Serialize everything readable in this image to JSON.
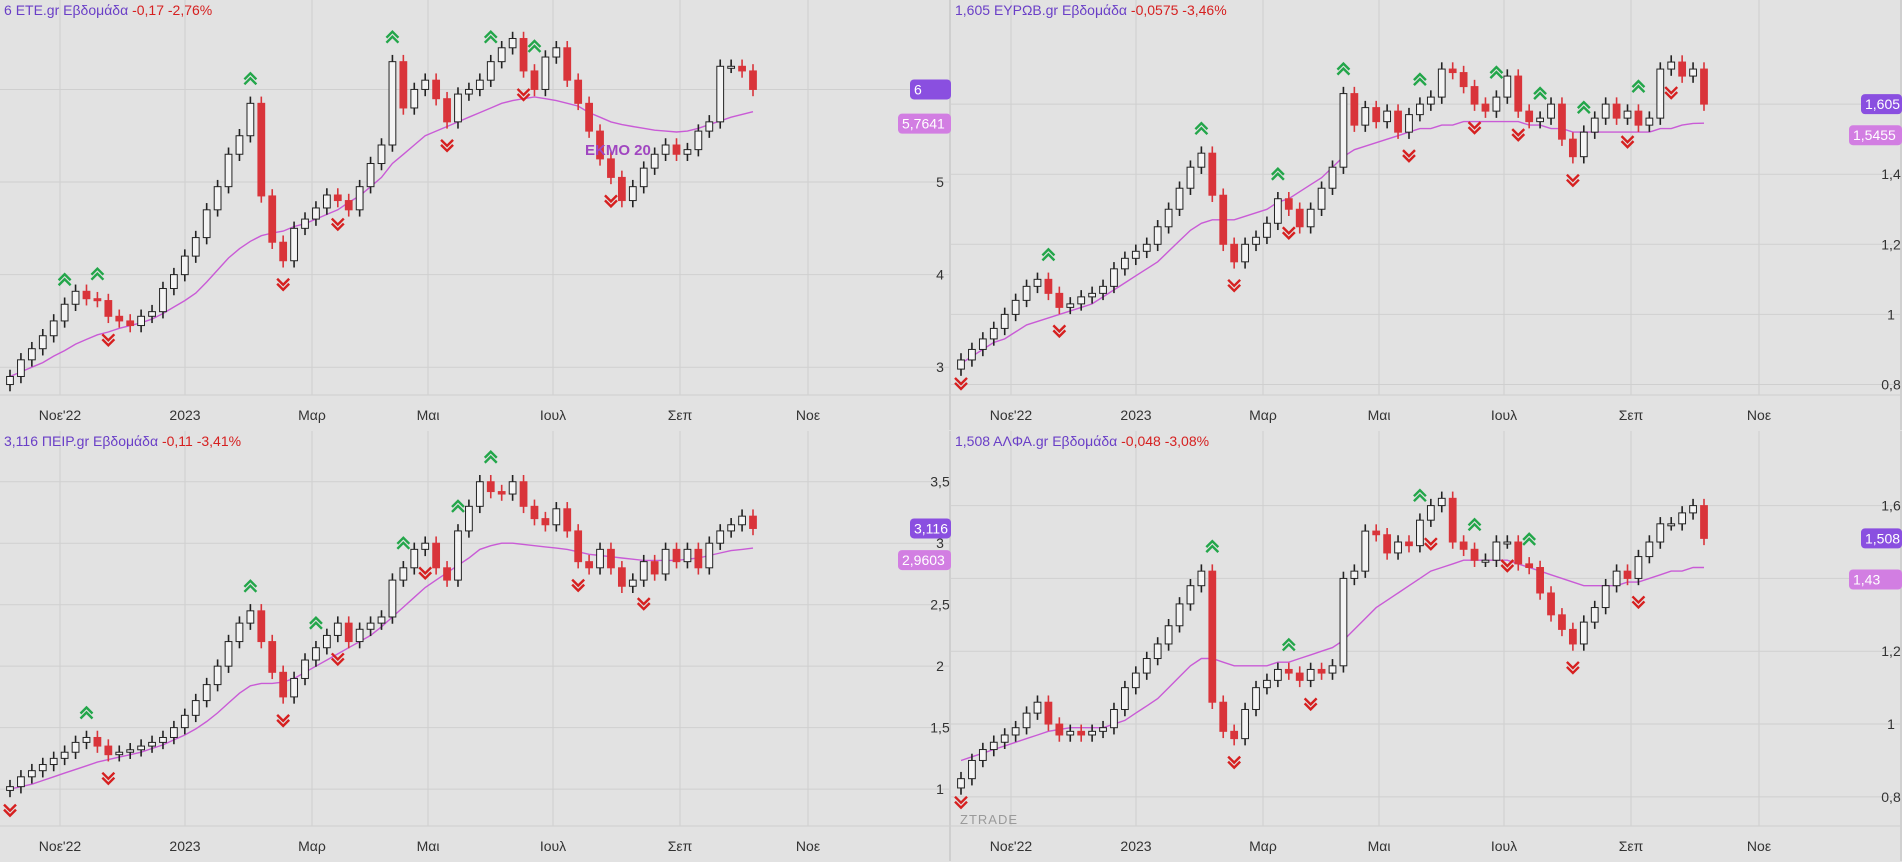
{
  "watermark": "ZTRADE",
  "colors": {
    "bg": "#e2e2e2",
    "grid": "#cfcfcf",
    "up_fill": "#f4f4f4",
    "down": "#d9343a",
    "ma": "#c95bd6",
    "accent": "#8a4fe0",
    "buy": "#23a64a",
    "sell": "#d62020"
  },
  "x_axis_labels": [
    "Νοε'22",
    "2023",
    "Μαρ",
    "Μαι",
    "Ιουλ",
    "Σεπ",
    "Νοε"
  ],
  "chart_data": [
    {
      "type": "candlestick",
      "symbol": "ETE.gr",
      "last_label": "6",
      "timeframe": "Εβδομάδα",
      "change": "-0,17 -2,76%",
      "ma_label": "5,7641",
      "annotation": "ΕΚΜΟ 20",
      "ylim": [
        2.7,
        6.75
      ],
      "yticks": [
        3,
        4,
        5,
        6
      ],
      "ytick_labels": [
        "3",
        "4",
        "5",
        "6"
      ],
      "close": [
        2.9,
        3.08,
        3.2,
        3.34,
        3.5,
        3.68,
        3.82,
        3.74,
        3.72,
        3.55,
        3.5,
        3.45,
        3.55,
        3.6,
        3.85,
        4.0,
        4.2,
        4.4,
        4.7,
        4.95,
        5.3,
        5.5,
        5.85,
        4.85,
        4.35,
        4.15,
        4.5,
        4.6,
        4.72,
        4.86,
        4.8,
        4.7,
        4.95,
        5.2,
        5.4,
        6.3,
        5.8,
        6.0,
        6.1,
        5.9,
        5.65,
        5.95,
        6.0,
        6.1,
        6.3,
        6.45,
        6.55,
        6.2,
        6.0,
        6.35,
        6.45,
        6.1,
        5.85,
        5.55,
        5.25,
        5.05,
        4.8,
        4.95,
        5.15,
        5.3,
        5.4,
        5.3,
        5.35,
        5.55,
        5.65,
        6.25,
        6.25,
        6.2,
        6.0
      ],
      "ma": [
        2.9,
        2.95,
        3.0,
        3.05,
        3.12,
        3.18,
        3.25,
        3.3,
        3.35,
        3.38,
        3.42,
        3.45,
        3.48,
        3.52,
        3.58,
        3.65,
        3.72,
        3.8,
        3.92,
        4.05,
        4.18,
        4.28,
        4.36,
        4.42,
        4.45,
        4.47,
        4.52,
        4.55,
        4.6,
        4.65,
        4.7,
        4.78,
        4.85,
        4.95,
        5.05,
        5.2,
        5.3,
        5.4,
        5.5,
        5.55,
        5.6,
        5.65,
        5.7,
        5.75,
        5.8,
        5.85,
        5.88,
        5.9,
        5.92,
        5.9,
        5.88,
        5.85,
        5.82,
        5.75,
        5.7,
        5.65,
        5.62,
        5.6,
        5.58,
        5.56,
        5.55,
        5.54,
        5.55,
        5.58,
        5.62,
        5.66,
        5.7,
        5.73,
        5.76
      ],
      "buy_signals": [
        5,
        8,
        22,
        35,
        44,
        48
      ],
      "sell_signals": [
        9,
        25,
        30,
        40,
        47,
        55
      ]
    },
    {
      "type": "candlestick",
      "symbol": "ΕΥΡΩΒ.gr",
      "last_label": "1,605",
      "timeframe": "Εβδομάδα",
      "change": "-0,0575 -3,46%",
      "ma_label": "1,5455",
      "ylim": [
        0.77,
        1.84
      ],
      "yticks": [
        0.8,
        1,
        1.2,
        1.4,
        1.6
      ],
      "ytick_labels": [
        "0,8",
        "1",
        "1,2",
        "1,4",
        "1,6"
      ],
      "close": [
        0.87,
        0.9,
        0.93,
        0.96,
        1.0,
        1.04,
        1.08,
        1.1,
        1.06,
        1.02,
        1.03,
        1.05,
        1.06,
        1.08,
        1.13,
        1.16,
        1.18,
        1.2,
        1.25,
        1.3,
        1.36,
        1.42,
        1.46,
        1.34,
        1.2,
        1.15,
        1.2,
        1.22,
        1.26,
        1.33,
        1.3,
        1.25,
        1.3,
        1.36,
        1.42,
        1.63,
        1.54,
        1.59,
        1.55,
        1.58,
        1.52,
        1.57,
        1.6,
        1.62,
        1.7,
        1.69,
        1.65,
        1.6,
        1.58,
        1.62,
        1.68,
        1.58,
        1.55,
        1.56,
        1.6,
        1.5,
        1.45,
        1.52,
        1.56,
        1.6,
        1.56,
        1.58,
        1.54,
        1.56,
        1.7,
        1.72,
        1.68,
        1.7,
        1.6
      ],
      "ma": [
        0.86,
        0.88,
        0.9,
        0.92,
        0.93,
        0.95,
        0.97,
        0.98,
        0.99,
        1.0,
        1.01,
        1.02,
        1.03,
        1.05,
        1.07,
        1.09,
        1.11,
        1.13,
        1.15,
        1.18,
        1.21,
        1.24,
        1.26,
        1.27,
        1.27,
        1.27,
        1.28,
        1.29,
        1.3,
        1.32,
        1.33,
        1.35,
        1.37,
        1.39,
        1.42,
        1.45,
        1.47,
        1.48,
        1.49,
        1.5,
        1.51,
        1.52,
        1.53,
        1.53,
        1.54,
        1.54,
        1.55,
        1.55,
        1.55,
        1.55,
        1.55,
        1.55,
        1.54,
        1.54,
        1.53,
        1.53,
        1.52,
        1.52,
        1.52,
        1.52,
        1.52,
        1.52,
        1.52,
        1.52,
        1.53,
        1.53,
        1.54,
        1.545,
        1.5455
      ],
      "buy_signals": [
        8,
        22,
        29,
        35,
        42,
        49,
        53,
        57,
        62
      ],
      "sell_signals": [
        0,
        9,
        25,
        30,
        41,
        47,
        51,
        56,
        61,
        65
      ]
    },
    {
      "type": "candlestick",
      "symbol": "ΠΕΙΡ.gr",
      "last_label": "3,116",
      "timeframe": "Εβδομάδα",
      "change": "-0,11 -3,41%",
      "ma_label": "2,9603",
      "ylim": [
        0.7,
        3.75
      ],
      "yticks": [
        1,
        1.5,
        2,
        2.5,
        3,
        3.5
      ],
      "ytick_labels": [
        "1",
        "1,5",
        "2",
        "2,5",
        "3",
        "3,5"
      ],
      "close": [
        1.02,
        1.1,
        1.15,
        1.2,
        1.25,
        1.3,
        1.38,
        1.42,
        1.35,
        1.28,
        1.3,
        1.32,
        1.35,
        1.38,
        1.42,
        1.5,
        1.6,
        1.72,
        1.85,
        2.0,
        2.2,
        2.35,
        2.45,
        2.2,
        1.95,
        1.75,
        1.9,
        2.05,
        2.15,
        2.25,
        2.35,
        2.2,
        2.3,
        2.35,
        2.4,
        2.7,
        2.8,
        2.95,
        3.0,
        2.8,
        2.7,
        3.1,
        3.3,
        3.5,
        3.42,
        3.4,
        3.5,
        3.3,
        3.2,
        3.15,
        3.28,
        3.1,
        2.85,
        2.8,
        2.95,
        2.8,
        2.65,
        2.7,
        2.85,
        2.75,
        2.95,
        2.85,
        2.95,
        2.8,
        3.0,
        3.1,
        3.15,
        3.22,
        3.12
      ],
      "ma": [
        1.0,
        1.02,
        1.04,
        1.07,
        1.1,
        1.13,
        1.16,
        1.19,
        1.22,
        1.24,
        1.26,
        1.28,
        1.3,
        1.33,
        1.36,
        1.4,
        1.44,
        1.49,
        1.55,
        1.62,
        1.7,
        1.78,
        1.84,
        1.86,
        1.86,
        1.87,
        1.9,
        1.95,
        2.0,
        2.05,
        2.1,
        2.15,
        2.2,
        2.25,
        2.32,
        2.4,
        2.48,
        2.56,
        2.64,
        2.7,
        2.76,
        2.82,
        2.88,
        2.95,
        2.98,
        3.0,
        3.0,
        2.99,
        2.98,
        2.97,
        2.96,
        2.95,
        2.93,
        2.91,
        2.9,
        2.89,
        2.88,
        2.87,
        2.86,
        2.86,
        2.86,
        2.86,
        2.87,
        2.88,
        2.9,
        2.92,
        2.94,
        2.95,
        2.9603
      ],
      "buy_signals": [
        7,
        22,
        28,
        36,
        41,
        44
      ],
      "sell_signals": [
        0,
        9,
        25,
        30,
        38,
        52,
        58
      ]
    },
    {
      "type": "candlestick",
      "symbol": "ΑΛΦΑ.gr",
      "last_label": "1,508",
      "timeframe": "Εβδομάδα",
      "change": "-0,048 -3,08%",
      "ma_label": "1,43",
      "ylim": [
        0.72,
        1.75
      ],
      "yticks": [
        0.8,
        1,
        1.2,
        1.4,
        1.6
      ],
      "ytick_labels": [
        "0,8",
        "1",
        "1,2",
        "1,4",
        "1,6"
      ],
      "close": [
        0.85,
        0.9,
        0.93,
        0.95,
        0.97,
        0.99,
        1.03,
        1.06,
        1.0,
        0.97,
        0.98,
        0.97,
        0.98,
        0.99,
        1.04,
        1.1,
        1.14,
        1.18,
        1.22,
        1.27,
        1.33,
        1.38,
        1.42,
        1.06,
        0.98,
        0.96,
        1.04,
        1.1,
        1.12,
        1.15,
        1.14,
        1.12,
        1.15,
        1.14,
        1.16,
        1.4,
        1.42,
        1.53,
        1.52,
        1.47,
        1.5,
        1.49,
        1.56,
        1.6,
        1.62,
        1.5,
        1.48,
        1.45,
        1.45,
        1.5,
        1.5,
        1.44,
        1.43,
        1.36,
        1.3,
        1.26,
        1.22,
        1.28,
        1.32,
        1.38,
        1.42,
        1.4,
        1.46,
        1.5,
        1.55,
        1.55,
        1.58,
        1.6,
        1.51
      ],
      "ma": [
        0.9,
        0.91,
        0.92,
        0.93,
        0.94,
        0.95,
        0.96,
        0.97,
        0.98,
        0.985,
        0.99,
        0.99,
        0.99,
        0.99,
        1.0,
        1.01,
        1.03,
        1.05,
        1.07,
        1.1,
        1.13,
        1.16,
        1.18,
        1.18,
        1.17,
        1.16,
        1.16,
        1.16,
        1.16,
        1.17,
        1.17,
        1.18,
        1.19,
        1.2,
        1.21,
        1.23,
        1.26,
        1.29,
        1.32,
        1.34,
        1.36,
        1.38,
        1.4,
        1.42,
        1.43,
        1.44,
        1.45,
        1.45,
        1.45,
        1.45,
        1.45,
        1.44,
        1.43,
        1.42,
        1.41,
        1.4,
        1.39,
        1.38,
        1.38,
        1.38,
        1.38,
        1.39,
        1.39,
        1.4,
        1.41,
        1.42,
        1.42,
        1.43,
        1.43
      ],
      "buy_signals": [
        23,
        30,
        42,
        47,
        52
      ],
      "sell_signals": [
        0,
        25,
        32,
        43,
        50,
        56,
        62
      ]
    }
  ]
}
